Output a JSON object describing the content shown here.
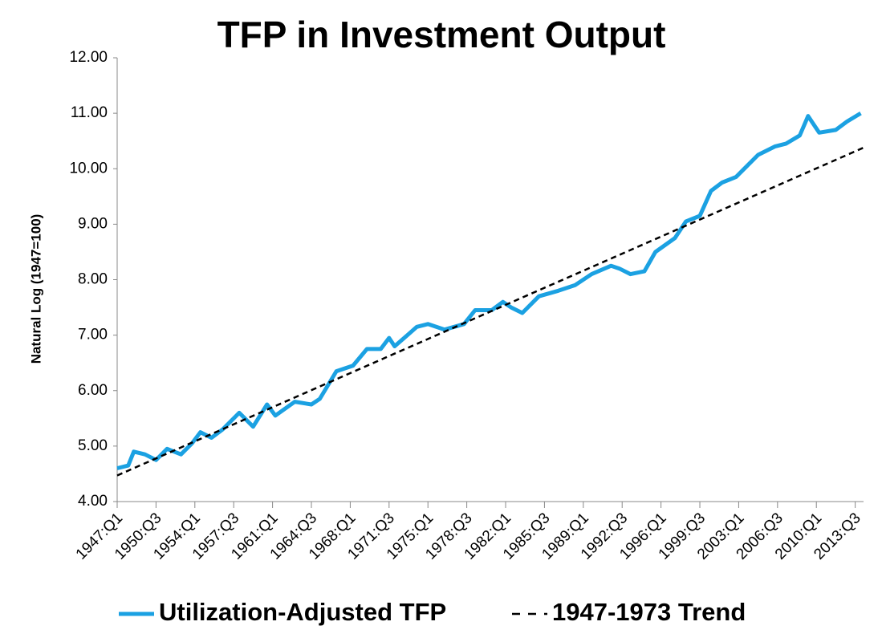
{
  "chart_data": {
    "type": "line",
    "title": "TFP in Investment Output",
    "y_label": "Natural Log (1947=100)",
    "xlim": [
      1947,
      2014.25
    ],
    "xticks": [
      {
        "value": 1947,
        "label": "1947:Q1"
      },
      {
        "value": 1950.5,
        "label": "1950:Q3"
      },
      {
        "value": 1954,
        "label": "1954:Q1"
      },
      {
        "value": 1957.5,
        "label": "1957:Q3"
      },
      {
        "value": 1961,
        "label": "1961:Q1"
      },
      {
        "value": 1964.5,
        "label": "1964:Q3"
      },
      {
        "value": 1968,
        "label": "1968:Q1"
      },
      {
        "value": 1971.5,
        "label": "1971:Q3"
      },
      {
        "value": 1975,
        "label": "1975:Q1"
      },
      {
        "value": 1978.5,
        "label": "1978:Q3"
      },
      {
        "value": 1982,
        "label": "1982:Q1"
      },
      {
        "value": 1985.5,
        "label": "1985:Q3"
      },
      {
        "value": 1989,
        "label": "1989:Q1"
      },
      {
        "value": 1992.5,
        "label": "1992:Q3"
      },
      {
        "value": 1996,
        "label": "1996:Q1"
      },
      {
        "value": 1999.5,
        "label": "1999:Q3"
      },
      {
        "value": 2003,
        "label": "2003:Q1"
      },
      {
        "value": 2006.5,
        "label": "2006:Q3"
      },
      {
        "value": 2010,
        "label": "2010:Q1"
      },
      {
        "value": 2013.5,
        "label": "2013:Q3"
      }
    ],
    "ylim": [
      4,
      12
    ],
    "yticks": [
      {
        "value": 4,
        "label": "4.00"
      },
      {
        "value": 5,
        "label": "5.00"
      },
      {
        "value": 6,
        "label": "6.00"
      },
      {
        "value": 7,
        "label": "7.00"
      },
      {
        "value": 8,
        "label": "8.00"
      },
      {
        "value": 9,
        "label": "9.00"
      },
      {
        "value": 10,
        "label": "10.00"
      },
      {
        "value": 11,
        "label": "11.00"
      },
      {
        "value": 12,
        "label": "12.00"
      }
    ],
    "grid": false,
    "legend": "bottom",
    "series": [
      {
        "name": "Utilization-Adjusted TFP",
        "color": "#1ba1e2",
        "dash": false,
        "x": [
          1947,
          1948,
          1948.5,
          1949.5,
          1950.5,
          1951.5,
          1952.75,
          1953.75,
          1954.5,
          1955.5,
          1956.5,
          1958,
          1959.25,
          1960.5,
          1961.25,
          1963,
          1964.5,
          1965.25,
          1966.75,
          1968.25,
          1969.5,
          1970.75,
          1971.5,
          1972,
          1974,
          1975,
          1976.5,
          1978.25,
          1979.25,
          1980.75,
          1981.75,
          1982.5,
          1983.5,
          1985,
          1986.75,
          1988.25,
          1989.75,
          1991.5,
          1992.25,
          1993.25,
          1994.5,
          1995.5,
          1997.25,
          1998.25,
          1999.5,
          2000.5,
          2001.5,
          2002.75,
          2003.5,
          2004.75,
          2006.25,
          2007.25,
          2008.5,
          2009.25,
          2010.25,
          2011.75,
          2012.75,
          2014
        ],
        "values": [
          4.6,
          4.65,
          4.9,
          4.85,
          4.75,
          4.95,
          4.85,
          5.05,
          5.25,
          5.15,
          5.3,
          5.6,
          5.35,
          5.75,
          5.55,
          5.8,
          5.75,
          5.85,
          6.35,
          6.45,
          6.75,
          6.75,
          6.95,
          6.8,
          7.15,
          7.2,
          7.1,
          7.2,
          7.45,
          7.45,
          7.6,
          7.5,
          7.4,
          7.7,
          7.8,
          7.9,
          8.1,
          8.25,
          8.2,
          8.1,
          8.15,
          8.5,
          8.75,
          9.05,
          9.15,
          9.6,
          9.75,
          9.85,
          10.0,
          10.25,
          10.4,
          10.45,
          10.6,
          10.95,
          10.65,
          10.7,
          10.85,
          11.0
        ]
      },
      {
        "name": "1947-1973 Trend",
        "color": "#000000",
        "dash": true,
        "x": [
          1947,
          2014.25
        ],
        "values": [
          4.47,
          10.38
        ]
      }
    ]
  }
}
